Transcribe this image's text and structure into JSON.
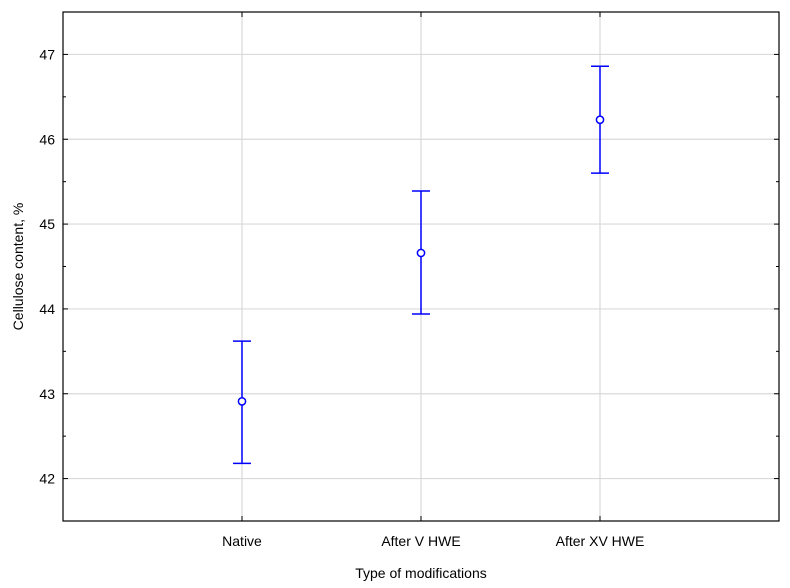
{
  "chart_data": {
    "type": "scatter",
    "title": "",
    "xlabel": "Type of modifications",
    "ylabel": "Cellulose content, %",
    "categories": [
      "Native",
      "After V HWE",
      "After XV HWE"
    ],
    "series": [
      {
        "values": [
          42.91,
          44.66,
          46.23
        ],
        "lower": [
          42.18,
          43.94,
          45.6
        ],
        "upper": [
          43.62,
          45.39,
          46.86
        ]
      }
    ],
    "ylim": [
      41.5,
      47.5
    ],
    "yticks": [
      42,
      43,
      44,
      45,
      46,
      47
    ],
    "grid": true,
    "legend": "none",
    "colors": {
      "series": "#0000ff",
      "grid": "#d9d9d9",
      "axis": "#000000"
    },
    "marker": "open-circle",
    "error_bars": true
  }
}
